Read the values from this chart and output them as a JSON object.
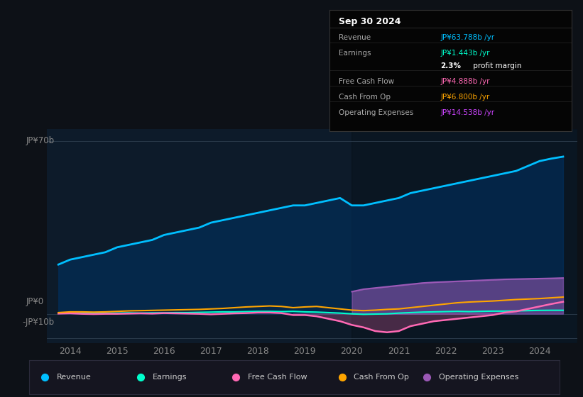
{
  "background_color": "#0d1117",
  "plot_bg_color": "#0d1b2a",
  "years": [
    2013.75,
    2014,
    2014.25,
    2014.5,
    2014.75,
    2015,
    2015.25,
    2015.5,
    2015.75,
    2016,
    2016.25,
    2016.5,
    2016.75,
    2017,
    2017.25,
    2017.5,
    2017.75,
    2018,
    2018.25,
    2018.5,
    2018.75,
    2019,
    2019.25,
    2019.5,
    2019.75,
    2020,
    2020.25,
    2020.5,
    2020.75,
    2021,
    2021.25,
    2021.5,
    2021.75,
    2022,
    2022.25,
    2022.5,
    2022.75,
    2023,
    2023.25,
    2023.5,
    2023.75,
    2024,
    2024.25,
    2024.5
  ],
  "revenue": [
    20,
    22,
    23,
    24,
    25,
    27,
    28,
    29,
    30,
    32,
    33,
    34,
    35,
    37,
    38,
    39,
    40,
    41,
    42,
    43,
    44,
    44,
    45,
    46,
    47,
    44,
    44,
    45,
    46,
    47,
    49,
    50,
    51,
    52,
    53,
    54,
    55,
    56,
    57,
    58,
    60,
    62,
    63,
    63.788
  ],
  "earnings": [
    0.2,
    0.3,
    0.3,
    0.2,
    0.3,
    0.3,
    0.4,
    0.3,
    0.4,
    0.4,
    0.5,
    0.5,
    0.6,
    0.7,
    0.8,
    0.8,
    0.9,
    1.0,
    1.0,
    0.9,
    1.0,
    0.8,
    0.7,
    0.5,
    0.3,
    0.0,
    -0.2,
    -0.1,
    0.0,
    0.3,
    0.5,
    0.7,
    0.8,
    0.9,
    1.0,
    0.9,
    1.0,
    1.1,
    1.1,
    1.2,
    1.3,
    1.4,
    1.443,
    1.443
  ],
  "free_cash_flow": [
    0.1,
    0.2,
    0.0,
    -0.1,
    0.0,
    0.0,
    0.1,
    0.2,
    0.1,
    0.3,
    0.2,
    0.1,
    0.0,
    -0.2,
    0.0,
    0.2,
    0.3,
    0.5,
    0.5,
    0.3,
    -0.5,
    -0.5,
    -1.0,
    -2.0,
    -3.0,
    -4.5,
    -5.5,
    -7.0,
    -7.5,
    -7.0,
    -5.0,
    -4.0,
    -3.0,
    -2.5,
    -2.0,
    -1.5,
    -1.0,
    -0.5,
    0.5,
    1.0,
    2.0,
    3.0,
    4.0,
    4.888
  ],
  "cash_from_op": [
    0.5,
    0.8,
    0.8,
    0.7,
    0.8,
    1.0,
    1.2,
    1.3,
    1.4,
    1.5,
    1.6,
    1.7,
    1.8,
    2.0,
    2.2,
    2.5,
    2.8,
    3.0,
    3.2,
    3.0,
    2.5,
    2.8,
    3.0,
    2.5,
    2.0,
    1.5,
    1.3,
    1.5,
    1.8,
    2.0,
    2.5,
    3.0,
    3.5,
    4.0,
    4.5,
    4.8,
    5.0,
    5.2,
    5.5,
    5.8,
    6.0,
    6.2,
    6.5,
    6.8
  ],
  "operating_expenses": [
    0,
    0,
    0,
    0,
    0,
    0,
    0,
    0,
    0,
    0,
    0,
    0,
    0,
    0,
    0,
    0,
    0,
    0,
    0,
    0,
    0,
    0,
    0,
    0,
    0,
    9,
    10,
    10.5,
    11,
    11.5,
    12,
    12.5,
    12.8,
    13.0,
    13.2,
    13.4,
    13.6,
    13.8,
    14.0,
    14.1,
    14.2,
    14.3,
    14.4,
    14.538
  ],
  "revenue_color": "#00bfff",
  "earnings_color": "#00ffcc",
  "free_cash_flow_color": "#ff69b4",
  "cash_from_op_color": "#ffa500",
  "operating_expenses_color": "#9b59b6",
  "revenue_fill_color": "#003366",
  "ylim": [
    -12,
    75
  ],
  "xlim": [
    2013.5,
    2024.8
  ],
  "xtick_labels": [
    "2014",
    "2015",
    "2016",
    "2017",
    "2018",
    "2019",
    "2020",
    "2021",
    "2022",
    "2023",
    "2024"
  ],
  "xtick_positions": [
    2014,
    2015,
    2016,
    2017,
    2018,
    2019,
    2020,
    2021,
    2022,
    2023,
    2024
  ],
  "info_box_title": "Sep 30 2024",
  "info_rows": [
    {
      "label": "Revenue",
      "value": "JP¥63.788b /yr",
      "value_color": "#00bfff"
    },
    {
      "label": "Earnings",
      "value": "JP¥1.443b /yr",
      "value_color": "#00ffcc"
    },
    {
      "label": "",
      "value": "2.3% profit margin",
      "value_color": "#ffffff"
    },
    {
      "label": "Free Cash Flow",
      "value": "JP¥4.888b /yr",
      "value_color": "#ff69b4"
    },
    {
      "label": "Cash From Op",
      "value": "JP¥6.800b /yr",
      "value_color": "#ffa500"
    },
    {
      "label": "Operating Expenses",
      "value": "JP¥14.538b /yr",
      "value_color": "#cc44ff"
    }
  ],
  "legend_items": [
    {
      "label": "Revenue",
      "color": "#00bfff"
    },
    {
      "label": "Earnings",
      "color": "#00ffcc"
    },
    {
      "label": "Free Cash Flow",
      "color": "#ff69b4"
    },
    {
      "label": "Cash From Op",
      "color": "#ffa500"
    },
    {
      "label": "Operating Expenses",
      "color": "#9b59b6"
    }
  ]
}
